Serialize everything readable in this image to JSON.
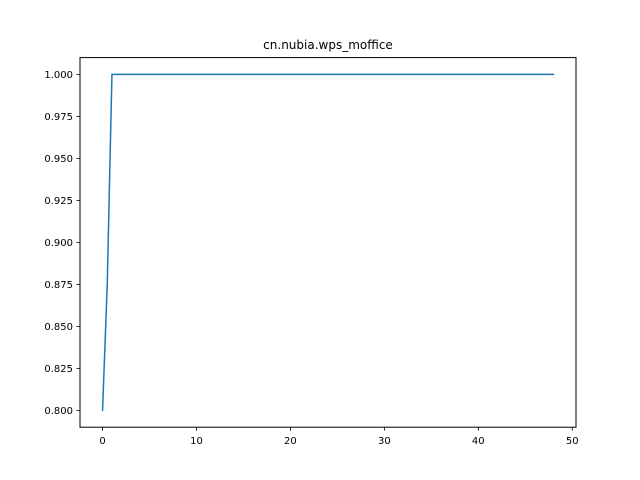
{
  "chart_data": {
    "type": "line",
    "title": "cn.nubia.wps_moffice",
    "xlabel": "",
    "ylabel": "",
    "xlim": [
      -2.4,
      50.4
    ],
    "ylim": [
      0.79,
      1.01
    ],
    "xticks": [
      0,
      10,
      20,
      30,
      40,
      50
    ],
    "xtick_labels": [
      "0",
      "10",
      "20",
      "30",
      "40",
      "50"
    ],
    "yticks": [
      0.8,
      0.825,
      0.85,
      0.875,
      0.9,
      0.925,
      0.95,
      0.975,
      1.0
    ],
    "ytick_labels": [
      "0.800",
      "0.825",
      "0.850",
      "0.875",
      "0.900",
      "0.925",
      "0.950",
      "0.975",
      "1.000"
    ],
    "grid": false,
    "series": [
      {
        "color": "#1f77b4",
        "x": [
          0,
          0.5,
          1,
          48
        ],
        "y": [
          0.8,
          0.875,
          1.0,
          1.0
        ]
      }
    ]
  }
}
